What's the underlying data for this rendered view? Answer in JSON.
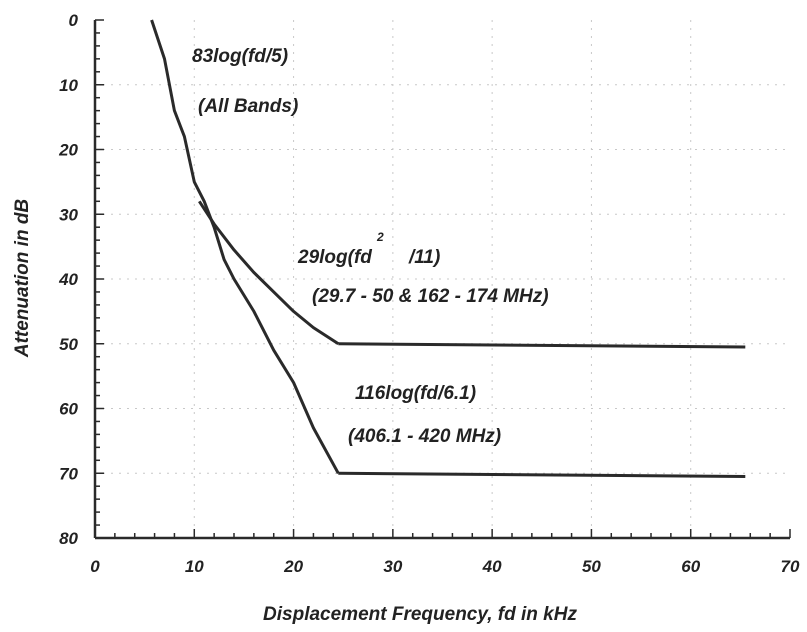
{
  "chart_data": {
    "type": "line",
    "title": "",
    "xlabel": "Displacement Frequency, fd in kHz",
    "ylabel": "Attenuation in dB",
    "xlim": [
      0,
      70
    ],
    "ylim": [
      0,
      80
    ],
    "y_inverted": true,
    "grid": true,
    "x_ticks": [
      "0",
      "10",
      "20",
      "30",
      "40",
      "50",
      "60",
      "70"
    ],
    "y_ticks": [
      "0",
      "10",
      "20",
      "30",
      "40",
      "50",
      "60",
      "70",
      "80"
    ],
    "series": [
      {
        "x": [
          5.7,
          7,
          8,
          9,
          10,
          11,
          12,
          13,
          14,
          16,
          18,
          20,
          22,
          24.5
        ],
        "y": [
          0,
          6,
          14,
          18,
          25,
          28,
          32,
          37,
          40,
          45,
          51,
          56,
          63,
          70
        ]
      },
      {
        "x": [
          24.5,
          65.5
        ],
        "y": [
          70,
          70.5
        ]
      },
      {
        "x": [
          10.5,
          12,
          14,
          16,
          18,
          20,
          22,
          24.5
        ],
        "y": [
          28,
          31.5,
          35.5,
          39,
          42,
          45,
          47.5,
          50
        ]
      },
      {
        "x": [
          24.5,
          65.5
        ],
        "y": [
          50,
          50.5
        ]
      }
    ],
    "annotations": [
      {
        "id": "label_83",
        "text": "83log(fd/5)"
      },
      {
        "id": "label_all_bands",
        "text": "(All Bands)"
      },
      {
        "id": "label_29_a",
        "text": "29log(fd"
      },
      {
        "id": "label_29_sup",
        "text": "2"
      },
      {
        "id": "label_29_b",
        "text": "/11)"
      },
      {
        "id": "label_29_range",
        "text": "(29.7 - 50 & 162 - 174 MHz)"
      },
      {
        "id": "label_116",
        "text": "116log(fd/6.1)"
      },
      {
        "id": "label_116_range",
        "text": "(406.1 - 420 MHz)"
      }
    ]
  }
}
